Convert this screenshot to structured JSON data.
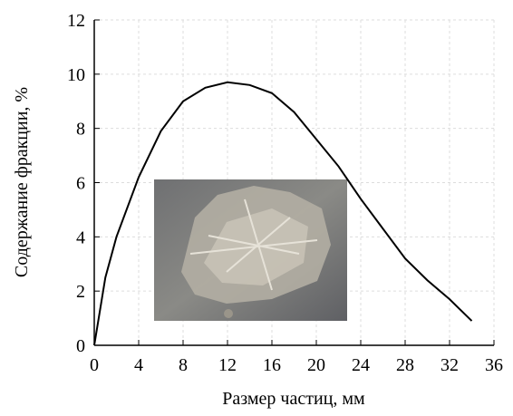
{
  "chart_data": {
    "type": "line",
    "x_label": "Размер частиц, мм",
    "y_label": "Содержание фракции, %",
    "x": [
      0,
      1,
      2,
      4,
      6,
      8,
      10,
      12,
      14,
      16,
      18,
      20,
      22,
      24,
      26,
      28,
      30,
      32,
      34
    ],
    "values": [
      0,
      2.5,
      4.0,
      6.2,
      7.9,
      9.0,
      9.5,
      9.7,
      9.6,
      9.3,
      8.6,
      7.6,
      6.6,
      5.4,
      4.3,
      3.2,
      2.4,
      1.7,
      0.9
    ],
    "color": "#000000",
    "xlim": [
      0,
      36
    ],
    "xticks": [
      0,
      4,
      8,
      12,
      16,
      20,
      24,
      28,
      32,
      36
    ],
    "ylim": [
      0,
      12
    ],
    "yticks": [
      0,
      2,
      4,
      6,
      8,
      10,
      12
    ],
    "grid": true
  }
}
